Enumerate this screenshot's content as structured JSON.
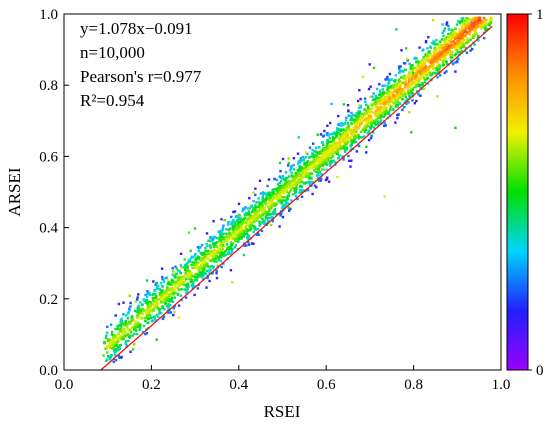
{
  "chart_data": {
    "type": "scatter",
    "title": "",
    "xlabel": "RSEI",
    "ylabel": "ARSEI",
    "xlim": [
      0.0,
      1.0
    ],
    "ylim": [
      0.0,
      1.0
    ],
    "xticks": [
      "0.0",
      "0.2",
      "0.4",
      "0.6",
      "0.8",
      "1.0"
    ],
    "yticks": [
      "0.0",
      "0.2",
      "0.4",
      "0.6",
      "0.8",
      "1.0"
    ],
    "grid": false,
    "annotations": [
      "y=1.078x−0.091",
      "n=10,000",
      "Pearson's r=0.977",
      "R²=0.954"
    ],
    "fit_line": {
      "slope": 1.078,
      "intercept": -0.091,
      "color": "#ff0000"
    },
    "n_points": 10000,
    "point_x_range": [
      0.07,
      0.98
    ],
    "colorbar": {
      "min_label": "0",
      "max_label": "1",
      "colors": [
        "#9b00ff",
        "#2020ff",
        "#00d4ff",
        "#00e000",
        "#f0f000",
        "#ff8c00",
        "#ff0000"
      ]
    }
  }
}
